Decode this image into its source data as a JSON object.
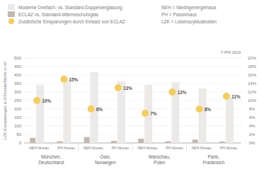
{
  "chart_data": {
    "type": "bar",
    "y_label": "LZK-Einsparungen in €/Fensterfläche in m²",
    "categories": [
      "NEH-Niveau",
      "PH-Niveau",
      "NEH-Niveau",
      "PH-Niveau",
      "NEH-Niveau",
      "PH-Niveau",
      "NEH-Niveau",
      "PH-Niveau"
    ],
    "groups": [
      [
        "München,",
        "Deutschland"
      ],
      [
        "Oslo,",
        "Norwegen"
      ],
      [
        "Warschau,",
        "Polen"
      ],
      [
        "Paris,",
        "Frankreich"
      ]
    ],
    "series": [
      {
        "name": "Moderne Dreifach- vs. Standard-Doppelverglasung",
        "color": "#eceae8",
        "type": "bar",
        "values": [
          342,
          380,
          417,
          362,
          342,
          358,
          320,
          267
        ]
      },
      {
        "name": "ECLAZ vs. Standard-Wärmeschutzglas",
        "color": "#c2b8b0",
        "type": "bar",
        "values": [
          30,
          10,
          35,
          12,
          25,
          10,
          20,
          8
        ]
      },
      {
        "name": "Zusätzliche Einsparungen durch Einsatz von ECLAZ",
        "color": "#f5cd5c",
        "type": "scatter",
        "marker": "circle",
        "axis": "y2",
        "data_labels": true,
        "values": [
          10,
          15,
          8,
          13,
          7,
          12,
          8,
          11
        ],
        "value_labels": [
          "10%",
          "15%",
          "8%",
          "13%",
          "7%",
          "12%",
          "8%",
          "11%"
        ]
      }
    ],
    "ylim": [
      0,
      500
    ],
    "yticks": [
      0,
      50,
      100,
      150,
      200,
      250,
      300,
      350,
      400,
      450,
      500
    ],
    "y2lim": [
      0,
      20
    ],
    "y2ticks": [
      {
        "value": 0,
        "label": "0%"
      },
      {
        "value": 2,
        "label": "2%"
      },
      {
        "value": 4,
        "label": "4%"
      },
      {
        "value": 6,
        "label": "6%"
      },
      {
        "value": 8,
        "label": "8%"
      },
      {
        "value": 10,
        "label": "10%"
      },
      {
        "value": 12,
        "label": "12%"
      },
      {
        "value": 14,
        "label": "14%"
      },
      {
        "value": 16,
        "label": "16%"
      },
      {
        "value": 18,
        "label": "18%"
      },
      {
        "value": 20,
        "label": "20%"
      }
    ],
    "grid": true,
    "notes": [
      "NEH = Niedrigenergiehaus",
      "PH = Passivhaus",
      "LZK = Lebenszykluskosten"
    ],
    "source": "© PHI 2019"
  }
}
